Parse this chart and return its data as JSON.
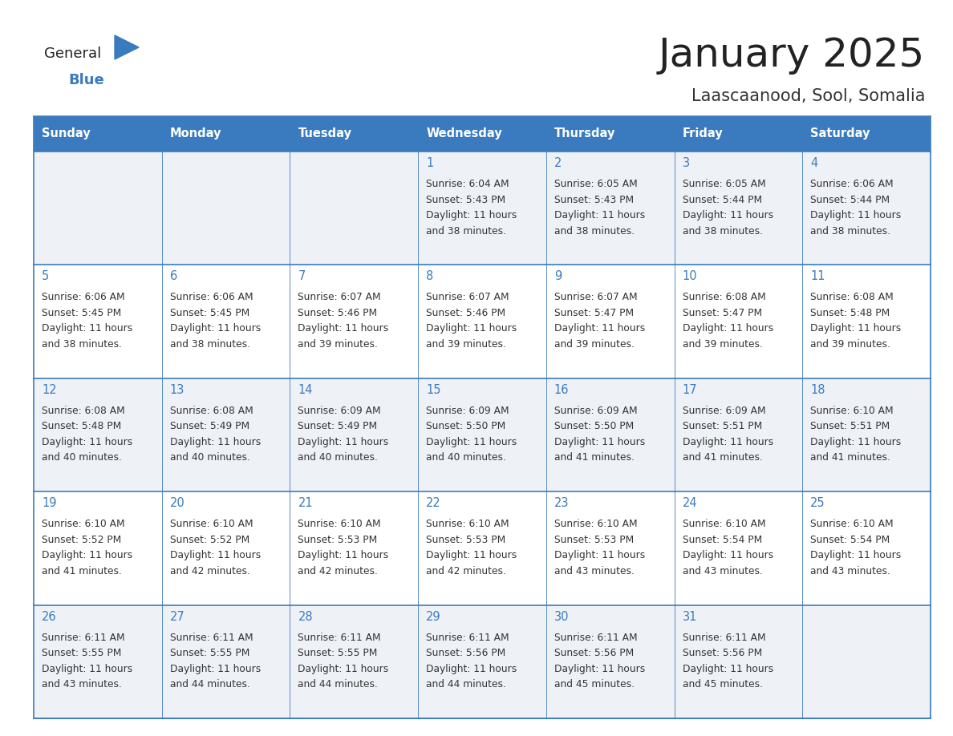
{
  "title": "January 2025",
  "subtitle": "Laascaanood, Sool, Somalia",
  "days_of_week": [
    "Sunday",
    "Monday",
    "Tuesday",
    "Wednesday",
    "Thursday",
    "Friday",
    "Saturday"
  ],
  "header_bg": "#3a7bbf",
  "header_text": "#ffffff",
  "row_bg_light": "#eef2f7",
  "row_bg_white": "#ffffff",
  "border_color": "#3a7bbf",
  "day_number_color": "#3a7bbf",
  "cell_text_color": "#333333",
  "title_color": "#222222",
  "subtitle_color": "#333333",
  "logo_general_color": "#222222",
  "logo_blue_color": "#3a7bbf",
  "logo_triangle_color": "#3a7bbf",
  "calendar_data": [
    [
      null,
      null,
      null,
      {
        "day": 1,
        "sunrise": "6:04 AM",
        "sunset": "5:43 PM",
        "daylight": "11 hours and 38 minutes."
      },
      {
        "day": 2,
        "sunrise": "6:05 AM",
        "sunset": "5:43 PM",
        "daylight": "11 hours and 38 minutes."
      },
      {
        "day": 3,
        "sunrise": "6:05 AM",
        "sunset": "5:44 PM",
        "daylight": "11 hours and 38 minutes."
      },
      {
        "day": 4,
        "sunrise": "6:06 AM",
        "sunset": "5:44 PM",
        "daylight": "11 hours and 38 minutes."
      }
    ],
    [
      {
        "day": 5,
        "sunrise": "6:06 AM",
        "sunset": "5:45 PM",
        "daylight": "11 hours and 38 minutes."
      },
      {
        "day": 6,
        "sunrise": "6:06 AM",
        "sunset": "5:45 PM",
        "daylight": "11 hours and 38 minutes."
      },
      {
        "day": 7,
        "sunrise": "6:07 AM",
        "sunset": "5:46 PM",
        "daylight": "11 hours and 39 minutes."
      },
      {
        "day": 8,
        "sunrise": "6:07 AM",
        "sunset": "5:46 PM",
        "daylight": "11 hours and 39 minutes."
      },
      {
        "day": 9,
        "sunrise": "6:07 AM",
        "sunset": "5:47 PM",
        "daylight": "11 hours and 39 minutes."
      },
      {
        "day": 10,
        "sunrise": "6:08 AM",
        "sunset": "5:47 PM",
        "daylight": "11 hours and 39 minutes."
      },
      {
        "day": 11,
        "sunrise": "6:08 AM",
        "sunset": "5:48 PM",
        "daylight": "11 hours and 39 minutes."
      }
    ],
    [
      {
        "day": 12,
        "sunrise": "6:08 AM",
        "sunset": "5:48 PM",
        "daylight": "11 hours and 40 minutes."
      },
      {
        "day": 13,
        "sunrise": "6:08 AM",
        "sunset": "5:49 PM",
        "daylight": "11 hours and 40 minutes."
      },
      {
        "day": 14,
        "sunrise": "6:09 AM",
        "sunset": "5:49 PM",
        "daylight": "11 hours and 40 minutes."
      },
      {
        "day": 15,
        "sunrise": "6:09 AM",
        "sunset": "5:50 PM",
        "daylight": "11 hours and 40 minutes."
      },
      {
        "day": 16,
        "sunrise": "6:09 AM",
        "sunset": "5:50 PM",
        "daylight": "11 hours and 41 minutes."
      },
      {
        "day": 17,
        "sunrise": "6:09 AM",
        "sunset": "5:51 PM",
        "daylight": "11 hours and 41 minutes."
      },
      {
        "day": 18,
        "sunrise": "6:10 AM",
        "sunset": "5:51 PM",
        "daylight": "11 hours and 41 minutes."
      }
    ],
    [
      {
        "day": 19,
        "sunrise": "6:10 AM",
        "sunset": "5:52 PM",
        "daylight": "11 hours and 41 minutes."
      },
      {
        "day": 20,
        "sunrise": "6:10 AM",
        "sunset": "5:52 PM",
        "daylight": "11 hours and 42 minutes."
      },
      {
        "day": 21,
        "sunrise": "6:10 AM",
        "sunset": "5:53 PM",
        "daylight": "11 hours and 42 minutes."
      },
      {
        "day": 22,
        "sunrise": "6:10 AM",
        "sunset": "5:53 PM",
        "daylight": "11 hours and 42 minutes."
      },
      {
        "day": 23,
        "sunrise": "6:10 AM",
        "sunset": "5:53 PM",
        "daylight": "11 hours and 43 minutes."
      },
      {
        "day": 24,
        "sunrise": "6:10 AM",
        "sunset": "5:54 PM",
        "daylight": "11 hours and 43 minutes."
      },
      {
        "day": 25,
        "sunrise": "6:10 AM",
        "sunset": "5:54 PM",
        "daylight": "11 hours and 43 minutes."
      }
    ],
    [
      {
        "day": 26,
        "sunrise": "6:11 AM",
        "sunset": "5:55 PM",
        "daylight": "11 hours and 43 minutes."
      },
      {
        "day": 27,
        "sunrise": "6:11 AM",
        "sunset": "5:55 PM",
        "daylight": "11 hours and 44 minutes."
      },
      {
        "day": 28,
        "sunrise": "6:11 AM",
        "sunset": "5:55 PM",
        "daylight": "11 hours and 44 minutes."
      },
      {
        "day": 29,
        "sunrise": "6:11 AM",
        "sunset": "5:56 PM",
        "daylight": "11 hours and 44 minutes."
      },
      {
        "day": 30,
        "sunrise": "6:11 AM",
        "sunset": "5:56 PM",
        "daylight": "11 hours and 45 minutes."
      },
      {
        "day": 31,
        "sunrise": "6:11 AM",
        "sunset": "5:56 PM",
        "daylight": "11 hours and 45 minutes."
      },
      null
    ]
  ],
  "figwidth": 11.88,
  "figheight": 9.18,
  "dpi": 100
}
